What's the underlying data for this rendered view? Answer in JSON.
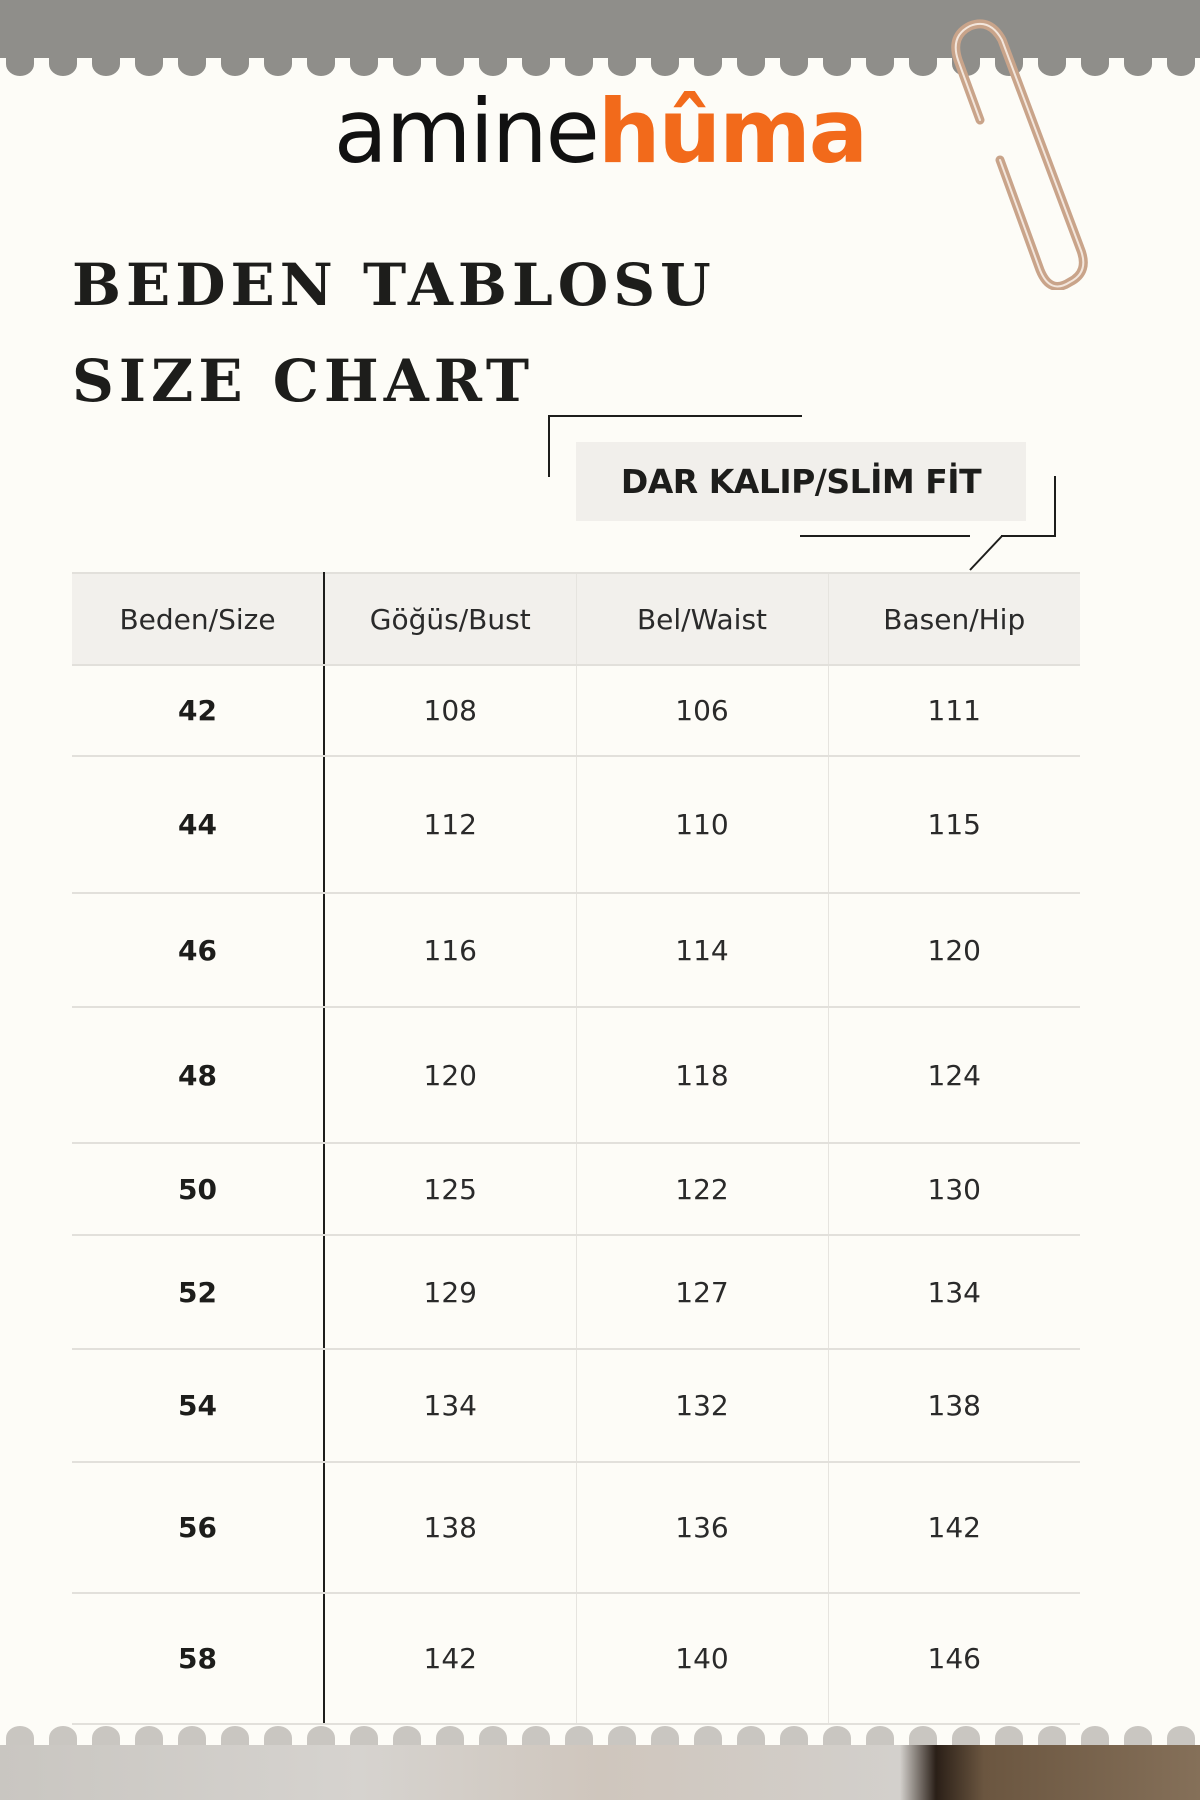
{
  "brand": {
    "logo_part1": "amine",
    "logo_part2": "hûma",
    "accent": "#f26a1b"
  },
  "titles": {
    "tr": "BEDEN TABLOSU",
    "en": "SIZE CHART"
  },
  "fit_label": "DAR KALIP/SLİM FİT",
  "table": {
    "headers": [
      "Beden/Size",
      "Göğüs/Bust",
      "Bel/Waist",
      "Basen/Hip"
    ],
    "rows": [
      [
        "42",
        "108",
        "106",
        "111"
      ],
      [
        "44",
        "112",
        "110",
        "115"
      ],
      [
        "46",
        "116",
        "114",
        "120"
      ],
      [
        "48",
        "120",
        "118",
        "124"
      ],
      [
        "50",
        "125",
        "122",
        "130"
      ],
      [
        "52",
        "129",
        "127",
        "134"
      ],
      [
        "54",
        "134",
        "132",
        "138"
      ],
      [
        "56",
        "138",
        "136",
        "142"
      ],
      [
        "58",
        "142",
        "140",
        "146"
      ]
    ]
  }
}
